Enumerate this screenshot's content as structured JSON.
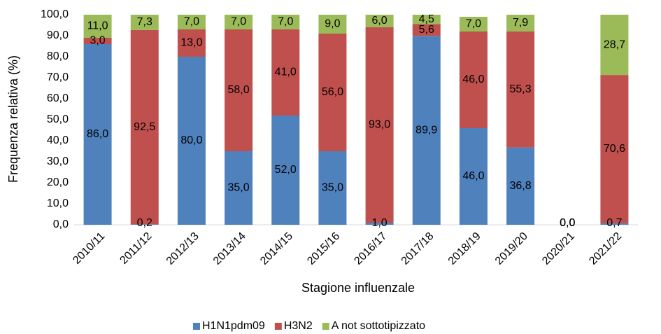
{
  "chart_data": {
    "type": "stacked_bar",
    "x_label": "Stagione influenzale",
    "y_label": "Frequenza relativa (%)",
    "categories": [
      "2010/11",
      "2011/12",
      "2012/13",
      "2013/14",
      "2014/15",
      "2015/16",
      "2016/17",
      "2017/18",
      "2018/19",
      "2019/20",
      "2020/21",
      "2021/22"
    ],
    "series": [
      {
        "name": "H1N1pdm09",
        "color": "#4f81bd",
        "values": [
          86.0,
          0.2,
          80.0,
          35.0,
          52.0,
          35.0,
          1.0,
          89.9,
          46.0,
          36.8,
          0.0,
          0.7
        ],
        "value_labels": [
          "86,0",
          "0,2",
          "80,0",
          "35,0",
          "52,0",
          "35,0",
          "1,0",
          "89,9",
          "46,0",
          "36,8",
          "0,0",
          "0,7"
        ]
      },
      {
        "name": "H3N2",
        "color": "#c0504d",
        "values": [
          3.0,
          92.5,
          13.0,
          58.0,
          41.0,
          56.0,
          93.0,
          5.6,
          46.0,
          55.3,
          0.0,
          70.6
        ],
        "value_labels": [
          "3,0",
          "92,5",
          "13,0",
          "58,0",
          "41,0",
          "56,0",
          "93,0",
          "5,6",
          "46,0",
          "55,3",
          "0,0",
          "70,6"
        ]
      },
      {
        "name": "A not sottotipizzato",
        "color": "#9bbb59",
        "values": [
          11.0,
          7.3,
          7.0,
          7.0,
          7.0,
          9.0,
          6.0,
          4.5,
          7.0,
          7.9,
          0.0,
          28.7
        ],
        "value_labels": [
          "11,0",
          "7,3",
          "7,0",
          "7,0",
          "7,0",
          "9,0",
          "6,0",
          "4,5",
          "7,0",
          "7,9",
          "0,0",
          "28,7"
        ]
      }
    ],
    "ylim": [
      0,
      100
    ],
    "yticks": [
      {
        "value": 0,
        "label": "0,0"
      },
      {
        "value": 10,
        "label": "10,0"
      },
      {
        "value": 20,
        "label": "20,0"
      },
      {
        "value": 30,
        "label": "30,0"
      },
      {
        "value": 40,
        "label": "40,0"
      },
      {
        "value": 50,
        "label": "50,0"
      },
      {
        "value": 60,
        "label": "60,0"
      },
      {
        "value": 70,
        "label": "70,0"
      },
      {
        "value": 80,
        "label": "80,0"
      },
      {
        "value": 90,
        "label": "90,0"
      },
      {
        "value": 100,
        "label": "100,0"
      }
    ],
    "legend": "bottom"
  }
}
